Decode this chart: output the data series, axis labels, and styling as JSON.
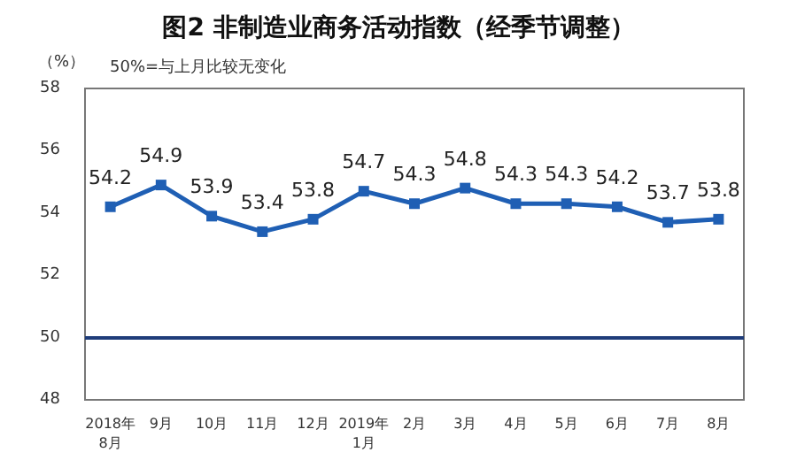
{
  "chart_data": {
    "type": "line",
    "title": "图2 非制造业商务活动指数（经季节调整）",
    "ylabel": "（%）",
    "annotations": [
      "50%=与上月比较无变化"
    ],
    "categories": [
      "2018年\n8月",
      "9月",
      "10月",
      "11月",
      "12月",
      "2019年\n1月",
      "2月",
      "3月",
      "4月",
      "5月",
      "6月",
      "7月",
      "8月"
    ],
    "series": [
      {
        "color": "#1f5fb4",
        "values": [
          54.2,
          54.9,
          53.9,
          53.4,
          53.8,
          54.7,
          54.3,
          54.8,
          54.3,
          54.3,
          54.2,
          53.7,
          53.8
        ]
      }
    ],
    "ylim": [
      48,
      58
    ],
    "yticks": [
      48,
      50,
      52,
      54,
      56,
      58
    ],
    "grid": false,
    "marker": "square",
    "line_style": "solid",
    "data_labels": true,
    "ref_lines": [
      {
        "axis": "y",
        "value": 50,
        "label": null,
        "color": "#1f3d7a",
        "line_style": "solid"
      }
    ]
  }
}
